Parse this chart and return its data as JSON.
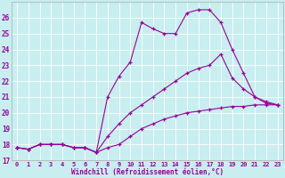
{
  "background_color": "#c8eef0",
  "grid_color": "#b0d8da",
  "line_color": "#990099",
  "marker": "+",
  "xlabel": "Windchill (Refroidissement éolien,°C)",
  "xlim": [
    -0.5,
    23.5
  ],
  "ylim": [
    17,
    27
  ],
  "yticks": [
    17,
    18,
    19,
    20,
    21,
    22,
    23,
    24,
    25,
    26
  ],
  "xticks": [
    0,
    1,
    2,
    3,
    4,
    5,
    6,
    7,
    8,
    9,
    10,
    11,
    12,
    13,
    14,
    15,
    16,
    17,
    18,
    19,
    20,
    21,
    22,
    23
  ],
  "lines": [
    {
      "x": [
        0,
        1,
        2,
        3,
        4,
        5,
        6,
        7,
        8,
        9,
        10,
        11,
        12,
        13,
        14,
        15,
        16,
        17,
        18,
        19,
        20,
        21,
        22,
        23
      ],
      "y": [
        17.8,
        17.7,
        18.0,
        18.0,
        18.0,
        17.8,
        17.8,
        17.5,
        17.8,
        18.0,
        18.5,
        19.0,
        19.3,
        19.6,
        19.8,
        20.0,
        20.1,
        20.2,
        20.3,
        20.4,
        20.4,
        20.5,
        20.5,
        20.5
      ]
    },
    {
      "x": [
        0,
        1,
        2,
        3,
        4,
        5,
        6,
        7,
        8,
        9,
        10,
        11,
        12,
        13,
        14,
        15,
        16,
        17,
        18,
        19,
        20,
        21,
        22,
        23
      ],
      "y": [
        17.8,
        17.7,
        18.0,
        18.0,
        18.0,
        17.8,
        17.8,
        17.5,
        18.5,
        19.3,
        20.0,
        20.5,
        21.0,
        21.5,
        22.0,
        22.5,
        22.8,
        23.0,
        23.7,
        22.2,
        21.5,
        21.0,
        20.6,
        20.5
      ]
    },
    {
      "x": [
        0,
        1,
        2,
        3,
        4,
        5,
        6,
        7,
        8,
        9,
        10,
        11,
        12,
        13,
        14,
        15,
        16,
        17,
        18,
        19,
        20,
        21,
        22,
        23
      ],
      "y": [
        17.8,
        17.7,
        18.0,
        18.0,
        18.0,
        17.8,
        17.8,
        17.5,
        21.0,
        22.3,
        23.2,
        25.7,
        25.3,
        25.0,
        25.0,
        26.3,
        26.5,
        26.5,
        25.7,
        24.0,
        22.5,
        21.0,
        20.7,
        20.5
      ]
    }
  ]
}
